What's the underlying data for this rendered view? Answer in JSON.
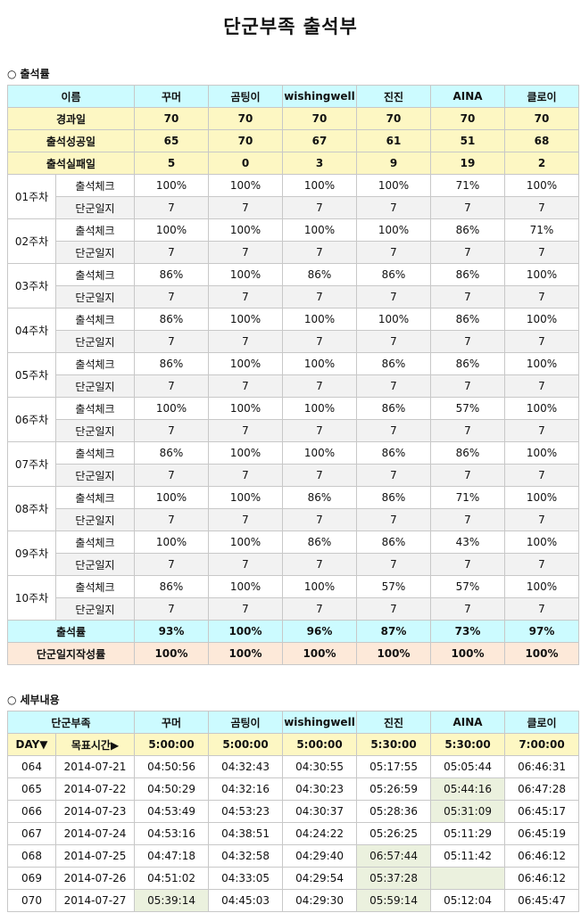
{
  "title": "단군부족 출석부",
  "attendance": {
    "heading": "출석률",
    "name_header": "이름",
    "members": [
      "꾸머",
      "곰팅이",
      "wishingwell",
      "진진",
      "AINA",
      "클로이"
    ],
    "summary": [
      {
        "label": "경과일",
        "values": [
          "70",
          "70",
          "70",
          "70",
          "70",
          "70"
        ]
      },
      {
        "label": "출석성공일",
        "values": [
          "65",
          "70",
          "67",
          "61",
          "51",
          "68"
        ]
      },
      {
        "label": "출석실패일",
        "values": [
          "5",
          "0",
          "3",
          "9",
          "19",
          "2"
        ]
      }
    ],
    "check_label": "출석체크",
    "log_label": "단군일지",
    "weeks": [
      {
        "label": "01주차",
        "check": [
          "100%",
          "100%",
          "100%",
          "100%",
          "71%",
          "100%"
        ],
        "log": [
          "7",
          "7",
          "7",
          "7",
          "7",
          "7"
        ]
      },
      {
        "label": "02주차",
        "check": [
          "100%",
          "100%",
          "100%",
          "100%",
          "86%",
          "71%"
        ],
        "log": [
          "7",
          "7",
          "7",
          "7",
          "7",
          "7"
        ]
      },
      {
        "label": "03주차",
        "check": [
          "86%",
          "100%",
          "86%",
          "86%",
          "86%",
          "100%"
        ],
        "log": [
          "7",
          "7",
          "7",
          "7",
          "7",
          "7"
        ]
      },
      {
        "label": "04주차",
        "check": [
          "86%",
          "100%",
          "100%",
          "100%",
          "86%",
          "100%"
        ],
        "log": [
          "7",
          "7",
          "7",
          "7",
          "7",
          "7"
        ]
      },
      {
        "label": "05주차",
        "check": [
          "86%",
          "100%",
          "100%",
          "86%",
          "86%",
          "100%"
        ],
        "log": [
          "7",
          "7",
          "7",
          "7",
          "7",
          "7"
        ]
      },
      {
        "label": "06주차",
        "check": [
          "100%",
          "100%",
          "100%",
          "86%",
          "57%",
          "100%"
        ],
        "log": [
          "7",
          "7",
          "7",
          "7",
          "7",
          "7"
        ]
      },
      {
        "label": "07주차",
        "check": [
          "86%",
          "100%",
          "100%",
          "86%",
          "86%",
          "100%"
        ],
        "log": [
          "7",
          "7",
          "7",
          "7",
          "7",
          "7"
        ]
      },
      {
        "label": "08주차",
        "check": [
          "100%",
          "100%",
          "86%",
          "86%",
          "71%",
          "100%"
        ],
        "log": [
          "7",
          "7",
          "7",
          "7",
          "7",
          "7"
        ]
      },
      {
        "label": "09주차",
        "check": [
          "100%",
          "100%",
          "86%",
          "86%",
          "43%",
          "100%"
        ],
        "log": [
          "7",
          "7",
          "7",
          "7",
          "7",
          "7"
        ]
      },
      {
        "label": "10주차",
        "check": [
          "86%",
          "100%",
          "100%",
          "57%",
          "57%",
          "100%"
        ],
        "log": [
          "7",
          "7",
          "7",
          "7",
          "7",
          "7"
        ]
      }
    ],
    "rate": {
      "label": "출석률",
      "values": [
        "93%",
        "100%",
        "96%",
        "87%",
        "73%",
        "97%"
      ]
    },
    "log_rate": {
      "label": "단군일지작성률",
      "values": [
        "100%",
        "100%",
        "100%",
        "100%",
        "100%",
        "100%"
      ]
    }
  },
  "detail": {
    "heading": "세부내용",
    "tribe_header": "단군부족",
    "members": [
      "꾸머",
      "곰팅이",
      "wishingwell",
      "진진",
      "AINA",
      "클로이"
    ],
    "day_label": "DAY▼",
    "target_label": "목표시간▶",
    "targets": [
      "5:00:00",
      "5:00:00",
      "5:00:00",
      "5:30:00",
      "5:30:00",
      "7:00:00"
    ],
    "highlight_color": "#ebf1de",
    "rows": [
      {
        "day": "064",
        "date": "2014-07-21",
        "times": [
          "04:50:56",
          "04:32:43",
          "04:30:55",
          "05:17:55",
          "05:05:44",
          "06:46:31"
        ],
        "highlight": [
          false,
          false,
          false,
          false,
          false,
          false
        ]
      },
      {
        "day": "065",
        "date": "2014-07-22",
        "times": [
          "04:50:29",
          "04:32:16",
          "04:30:23",
          "05:26:59",
          "05:44:16",
          "06:47:28"
        ],
        "highlight": [
          false,
          false,
          false,
          false,
          true,
          false
        ]
      },
      {
        "day": "066",
        "date": "2014-07-23",
        "times": [
          "04:53:49",
          "04:53:23",
          "04:30:37",
          "05:28:36",
          "05:31:09",
          "06:45:17"
        ],
        "highlight": [
          false,
          false,
          false,
          false,
          true,
          false
        ]
      },
      {
        "day": "067",
        "date": "2014-07-24",
        "times": [
          "04:53:16",
          "04:38:51",
          "04:24:22",
          "05:26:25",
          "05:11:29",
          "06:45:19"
        ],
        "highlight": [
          false,
          false,
          false,
          false,
          false,
          false
        ]
      },
      {
        "day": "068",
        "date": "2014-07-25",
        "times": [
          "04:47:18",
          "04:32:58",
          "04:29:40",
          "06:57:44",
          "05:11:42",
          "06:46:12"
        ],
        "highlight": [
          false,
          false,
          false,
          true,
          false,
          false
        ]
      },
      {
        "day": "069",
        "date": "2014-07-26",
        "times": [
          "04:51:02",
          "04:33:05",
          "04:29:54",
          "05:37:28",
          "",
          "06:46:12"
        ],
        "highlight": [
          false,
          false,
          false,
          true,
          true,
          false
        ]
      },
      {
        "day": "070",
        "date": "2014-07-27",
        "times": [
          "05:39:14",
          "04:45:03",
          "04:29:30",
          "05:59:14",
          "05:12:04",
          "06:45:47"
        ],
        "highlight": [
          true,
          false,
          false,
          true,
          false,
          false
        ]
      }
    ]
  }
}
